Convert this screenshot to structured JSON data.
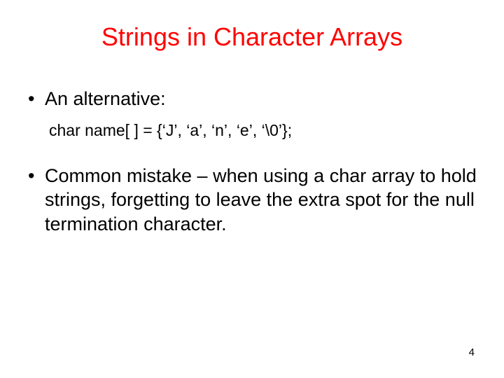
{
  "title": {
    "text": "Strings in Character Arrays",
    "color": "#ff0000",
    "fontsize": 36
  },
  "bullet1": {
    "text": "An alternative:",
    "color": "#000000",
    "fontsize": 27
  },
  "code": {
    "text": "char name[ ] = {‘J’, ‘a’, ‘n’, ‘e’, ‘\\0’};",
    "color": "#000000",
    "fontsize": 23
  },
  "bullet2": {
    "text": "Common mistake – when using a char array to hold strings, forgetting to leave the extra spot for the null termination character.",
    "color": "#000000",
    "fontsize": 27
  },
  "pagenum": {
    "text": "4",
    "color": "#000000",
    "fontsize": 15
  },
  "background_color": "#ffffff"
}
